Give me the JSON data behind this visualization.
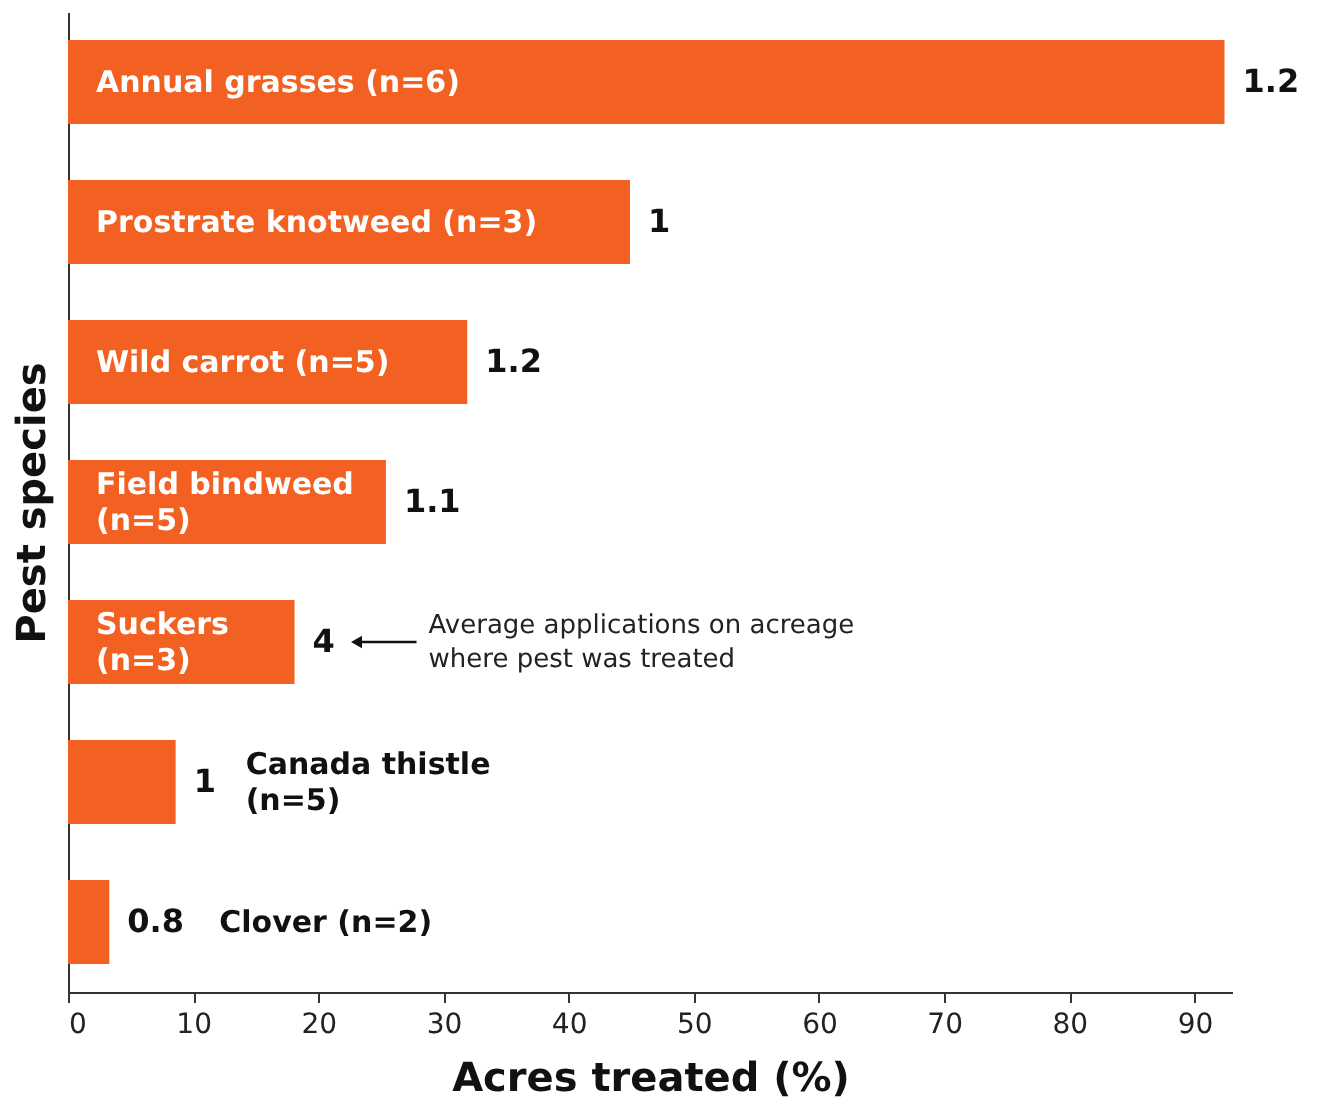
{
  "chart_data": {
    "type": "bar",
    "orientation": "horizontal",
    "xlabel": "Acres treated (%)",
    "ylabel": "Pest species",
    "categories": [
      "Annual grasses (n=6)",
      "Prostrate knotweed (n=3)",
      "Wild carrot (n=5)",
      "Field bindweed (n=5)",
      "Suckers (n=3)",
      "Canada thistle (n=5)",
      "Clover (n=2)"
    ],
    "values": [
      92.4,
      44.9,
      31.9,
      25.4,
      18.1,
      8.6,
      3.3
    ],
    "color": "#f26122",
    "xlim": [
      0,
      93
    ],
    "xticks": [
      0,
      10,
      20,
      30,
      40,
      50,
      60,
      70,
      80,
      90
    ],
    "grid": false,
    "annotations": [
      {
        "text": "1.2",
        "x": 92.4,
        "y": "Annual grasses (n=6)"
      },
      {
        "text": "1",
        "x": 44.9,
        "y": "Prostrate knotweed (n=3)"
      },
      {
        "text": "1.2",
        "x": 31.9,
        "y": "Wild carrot (n=5)"
      },
      {
        "text": "1.1",
        "x": 25.4,
        "y": "Field bindweed (n=5)"
      },
      {
        "text": "4",
        "x": 18.1,
        "y": "Suckers (n=3)"
      },
      "Average applications on acreage where pest was treated",
      {
        "text": "1",
        "x": 8.6,
        "y": "Canada thistle (n=5)"
      },
      {
        "text": "0.8",
        "x": 3.3,
        "y": "Clover (n=2)"
      }
    ]
  }
}
